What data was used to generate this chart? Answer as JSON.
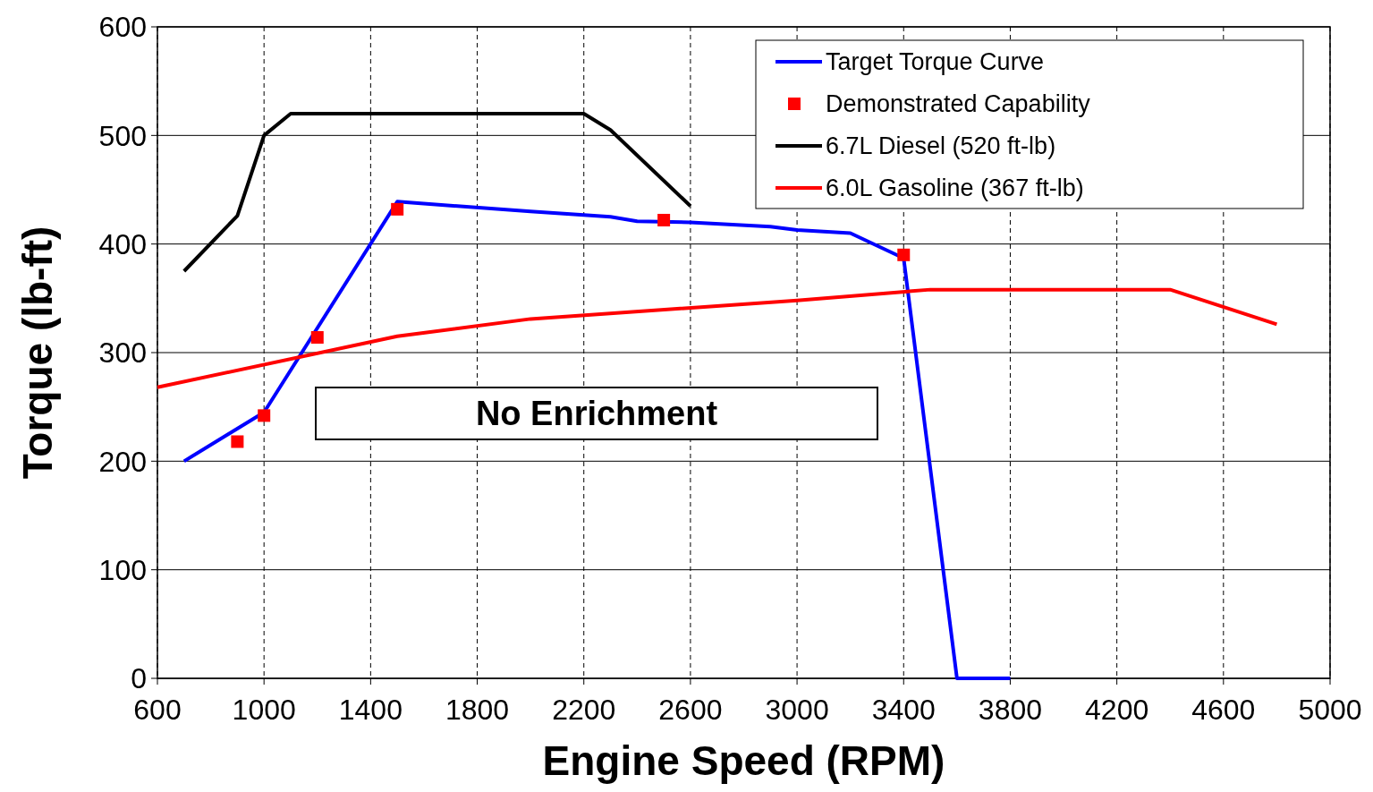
{
  "chart_data": {
    "type": "line",
    "xlabel": "Engine Speed (RPM)",
    "ylabel": "Torque (lb-ft)",
    "xlim": [
      600,
      5000
    ],
    "xticks": [
      600,
      1000,
      1400,
      1800,
      2200,
      2600,
      3000,
      3400,
      3800,
      4200,
      4600,
      5000
    ],
    "ylim": [
      0,
      600
    ],
    "yticks": [
      0,
      100,
      200,
      300,
      400,
      500,
      600
    ],
    "grid": true,
    "legend": "top right",
    "line_style": "solid",
    "annotations": [
      "No Enrichment"
    ],
    "series": [
      {
        "name": "Target Torque Curve",
        "color": "#0000ff",
        "marker": "none",
        "x": [
          700,
          1000,
          1500,
          2000,
          2300,
          2400,
          2600,
          2900,
          3000,
          3200,
          3400,
          3600,
          3800
        ],
        "values": [
          200,
          245,
          439,
          430,
          425,
          421,
          420,
          416,
          413,
          410,
          387,
          0,
          0
        ]
      },
      {
        "name": "Demonstrated Capability",
        "color": "#ff0000",
        "type": "scatter",
        "marker": "square",
        "x": [
          900,
          1000,
          1200,
          1500,
          2500,
          3400
        ],
        "values": [
          218,
          242,
          314,
          432,
          422,
          390
        ]
      },
      {
        "name": "6.7L Diesel (520 ft-lb)",
        "color": "#000000",
        "marker": "none",
        "x": [
          700,
          900,
          1000,
          1100,
          2200,
          2300,
          2600
        ],
        "values": [
          375,
          426,
          500,
          520,
          520,
          505,
          435
        ]
      },
      {
        "name": "6.0L Gasoline (367 ft-lb)",
        "color": "#ff0000",
        "marker": "none",
        "x": [
          600,
          1500,
          2000,
          3000,
          3500,
          4400,
          4800
        ],
        "values": [
          268,
          315,
          331,
          348,
          358,
          358,
          326
        ]
      }
    ]
  }
}
